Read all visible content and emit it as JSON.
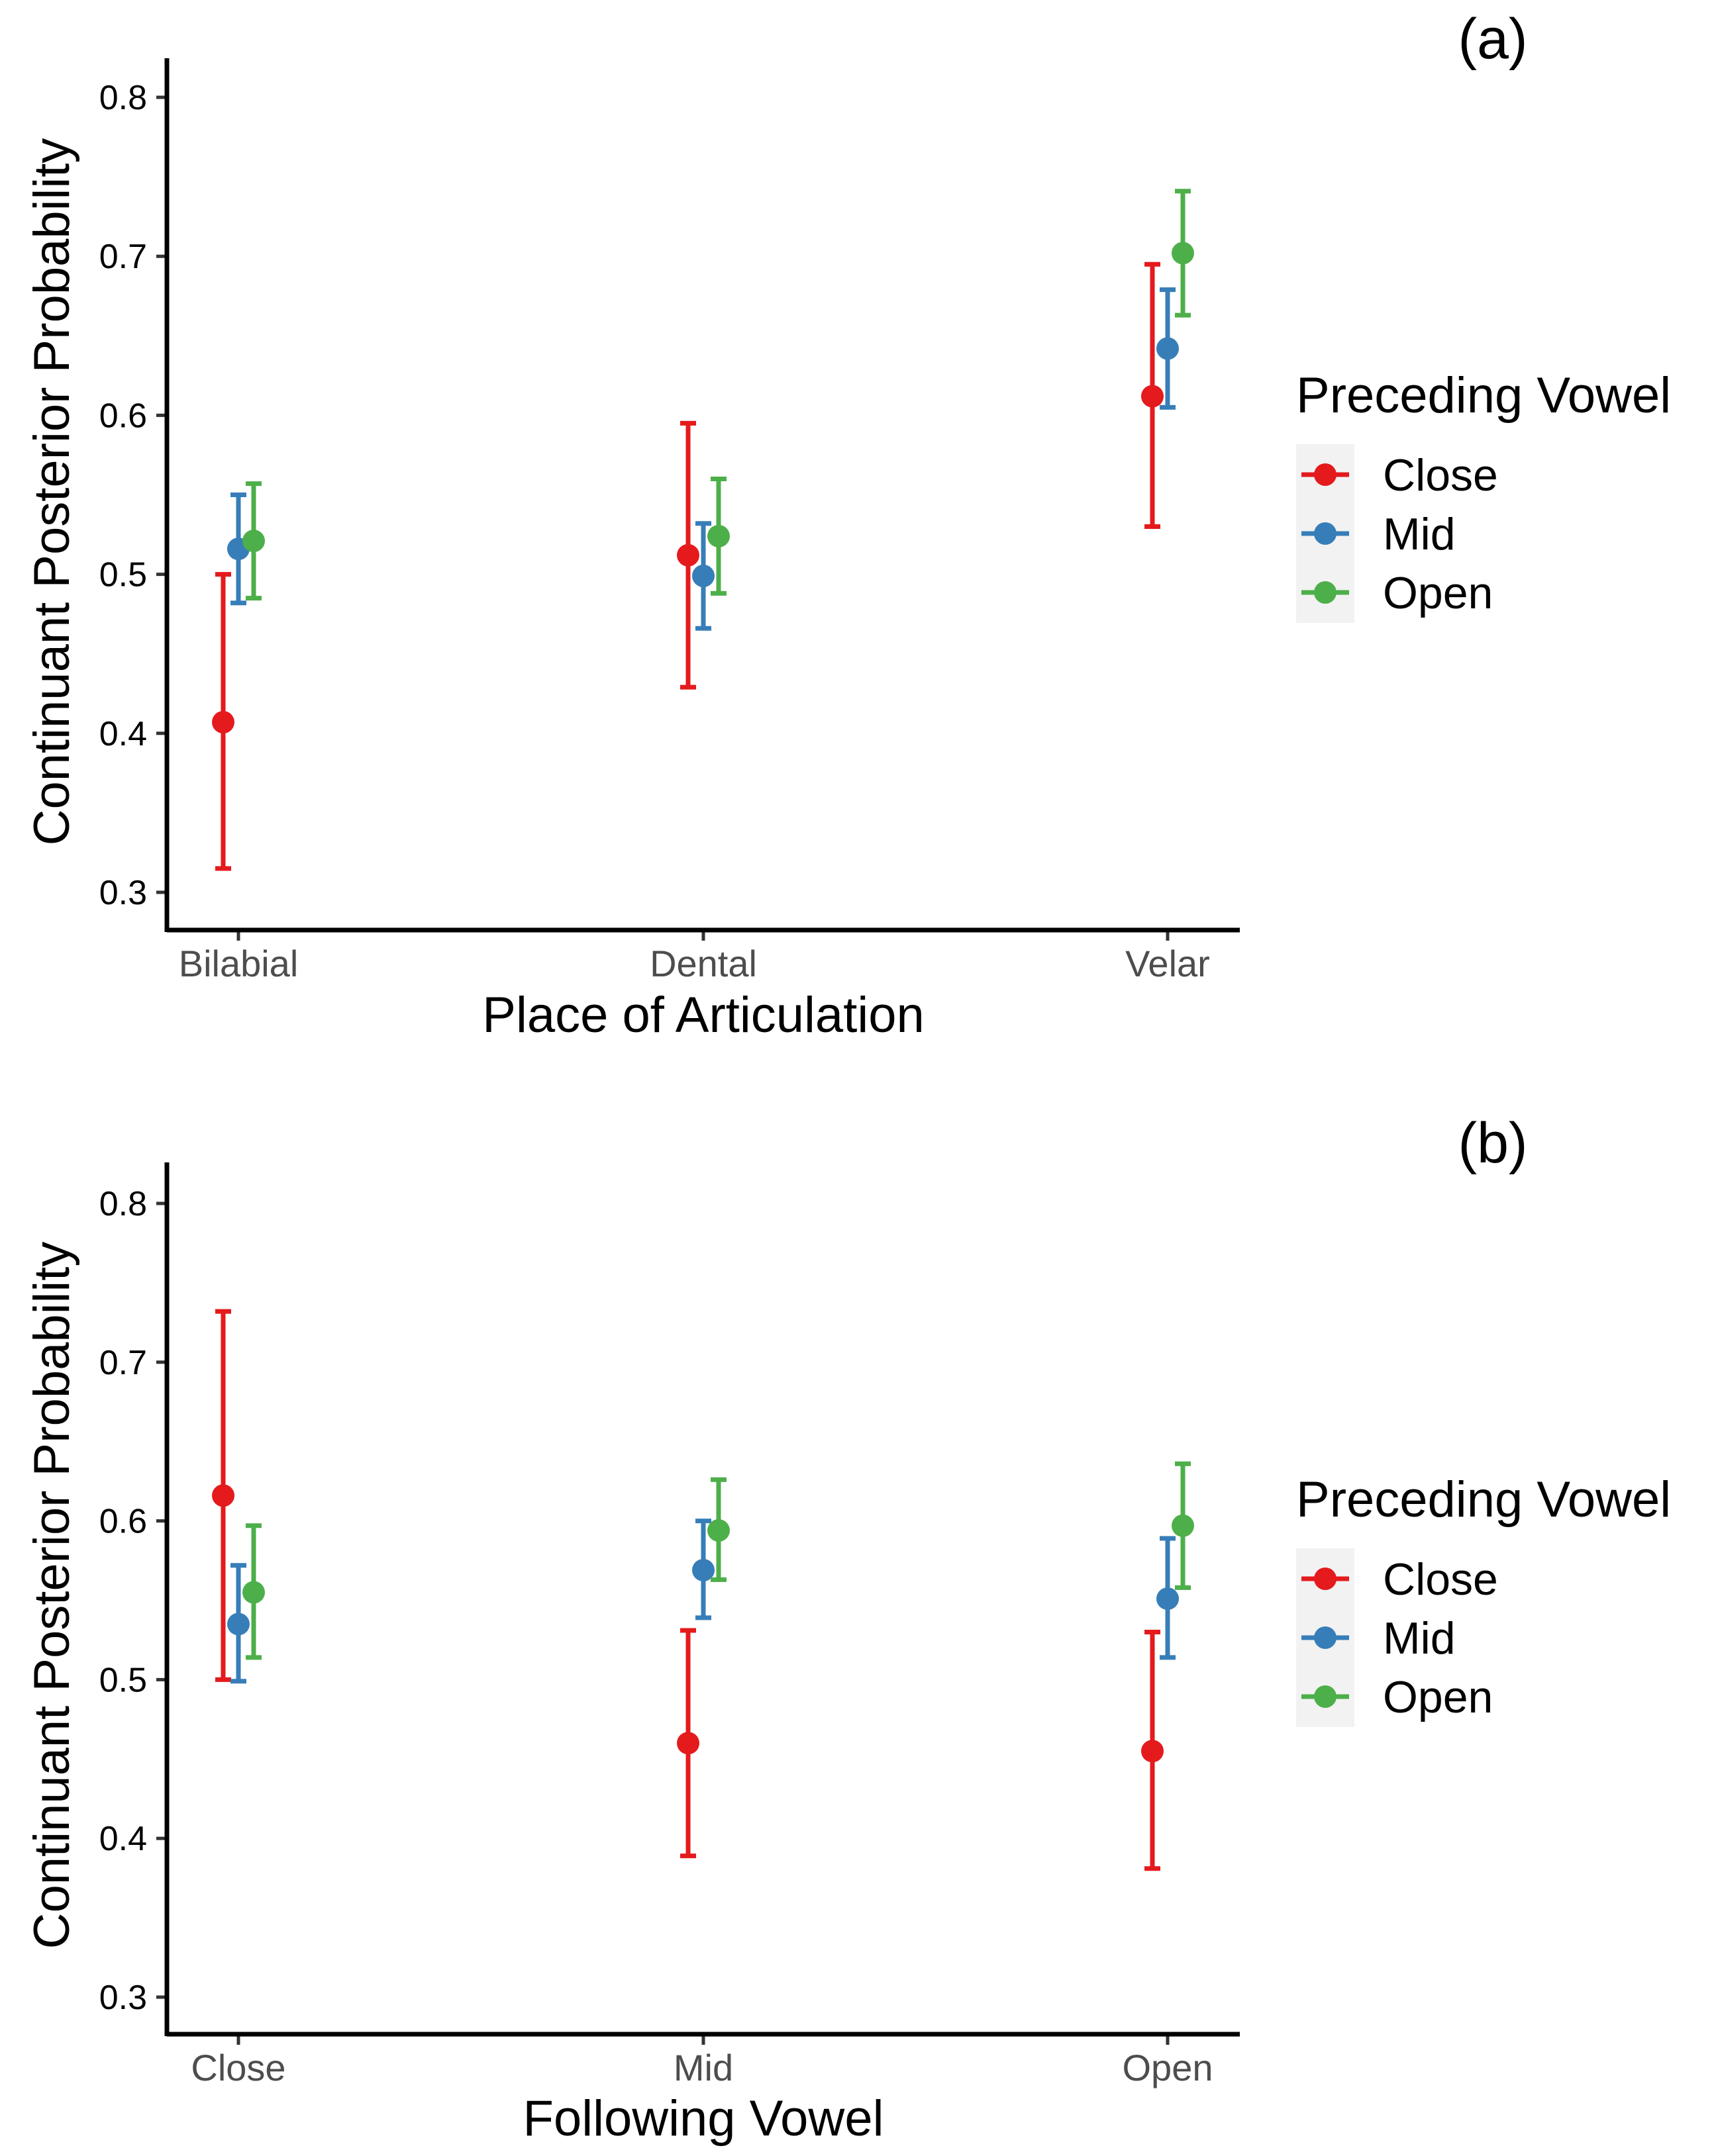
{
  "chart_data": [
    {
      "type": "scatter",
      "panel_label": "(a)",
      "title": "",
      "xlabel": "Place of Articulation",
      "ylabel": "Continuant Posterior Probability",
      "categories": [
        "Bilabial",
        "Dental",
        "Velar"
      ],
      "ylim": [
        0.28,
        0.825
      ],
      "yticks": [
        0.3,
        0.4,
        0.5,
        0.6,
        0.7,
        0.8
      ],
      "ytick_labels": [
        "0.3",
        "0.4",
        "0.5",
        "0.6",
        "0.7",
        "0.8"
      ],
      "series": [
        {
          "name": "Close",
          "color": "#e41a1c",
          "values": [
            0.407,
            0.512,
            0.612
          ],
          "lower": [
            0.315,
            0.429,
            0.53
          ],
          "upper": [
            0.5,
            0.595,
            0.695
          ]
        },
        {
          "name": "Mid",
          "color": "#377eb8",
          "values": [
            0.516,
            0.499,
            0.642
          ],
          "lower": [
            0.482,
            0.466,
            0.605
          ],
          "upper": [
            0.55,
            0.532,
            0.679
          ]
        },
        {
          "name": "Open",
          "color": "#4daf4a",
          "values": [
            0.521,
            0.524,
            0.702
          ],
          "lower": [
            0.485,
            0.488,
            0.663
          ],
          "upper": [
            0.557,
            0.56,
            0.741
          ]
        }
      ],
      "legend": {
        "title": "Preceding Vowel",
        "entries": [
          "Close",
          "Mid",
          "Open"
        ],
        "position": "right"
      }
    },
    {
      "type": "scatter",
      "panel_label": "(b)",
      "title": "",
      "xlabel": "Following Vowel",
      "ylabel": "Continuant Posterior Probability",
      "categories": [
        "Close",
        "Mid",
        "Open"
      ],
      "ylim": [
        0.28,
        0.825
      ],
      "yticks": [
        0.3,
        0.4,
        0.5,
        0.6,
        0.7,
        0.8
      ],
      "ytick_labels": [
        "0.3",
        "0.4",
        "0.5",
        "0.6",
        "0.7",
        "0.8"
      ],
      "series": [
        {
          "name": "Close",
          "color": "#e41a1c",
          "values": [
            0.616,
            0.46,
            0.455
          ],
          "lower": [
            0.5,
            0.389,
            0.381
          ],
          "upper": [
            0.732,
            0.531,
            0.53
          ]
        },
        {
          "name": "Mid",
          "color": "#377eb8",
          "values": [
            0.535,
            0.569,
            0.551
          ],
          "lower": [
            0.499,
            0.539,
            0.514
          ],
          "upper": [
            0.572,
            0.6,
            0.589
          ]
        },
        {
          "name": "Open",
          "color": "#4daf4a",
          "values": [
            0.555,
            0.594,
            0.597
          ],
          "lower": [
            0.514,
            0.563,
            0.558
          ],
          "upper": [
            0.597,
            0.626,
            0.636
          ]
        }
      ],
      "legend": {
        "title": "Preceding Vowel",
        "entries": [
          "Close",
          "Mid",
          "Open"
        ],
        "position": "right"
      }
    }
  ]
}
